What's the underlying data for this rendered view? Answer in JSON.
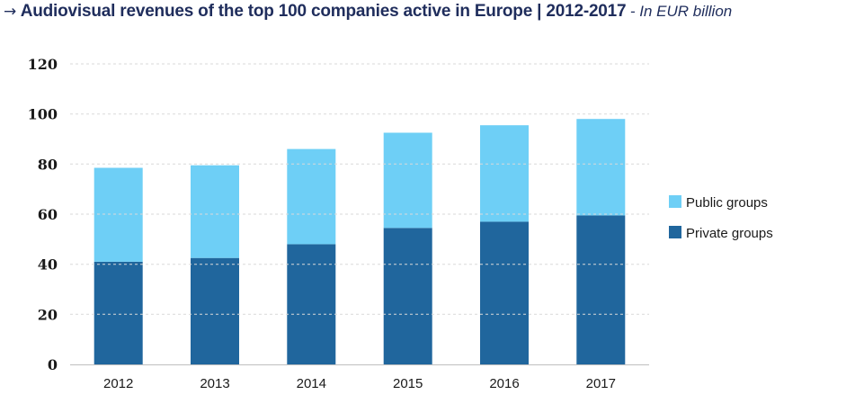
{
  "title": {
    "arrow": "→",
    "main": "Audiovisual revenues of the top 100 companies active in Europe | 2012-2017",
    "sub": " - In EUR billion"
  },
  "chart_data": {
    "type": "bar",
    "stacked": true,
    "title": "Audiovisual revenues of the top 100 companies active in Europe | 2012-2017",
    "subtitle": "In EUR billion",
    "categories": [
      "2012",
      "2013",
      "2014",
      "2015",
      "2016",
      "2017"
    ],
    "series": [
      {
        "name": "Private groups",
        "values": [
          41,
          42.5,
          48,
          54.5,
          57,
          59.5
        ],
        "color": "#20669d"
      },
      {
        "name": "Public groups",
        "values": [
          37.5,
          37,
          38,
          38,
          38.5,
          38.5
        ],
        "color": "#6ecff6"
      }
    ],
    "ylim": [
      0,
      120
    ],
    "yticks": [
      "0",
      "20",
      "40",
      "60",
      "80",
      "100",
      "120"
    ],
    "xlabel": "",
    "ylabel": "",
    "grid": "dashed horizontal, drawn over bars",
    "legend_position": "right",
    "legend_order": [
      "Public groups",
      "Private groups"
    ]
  }
}
